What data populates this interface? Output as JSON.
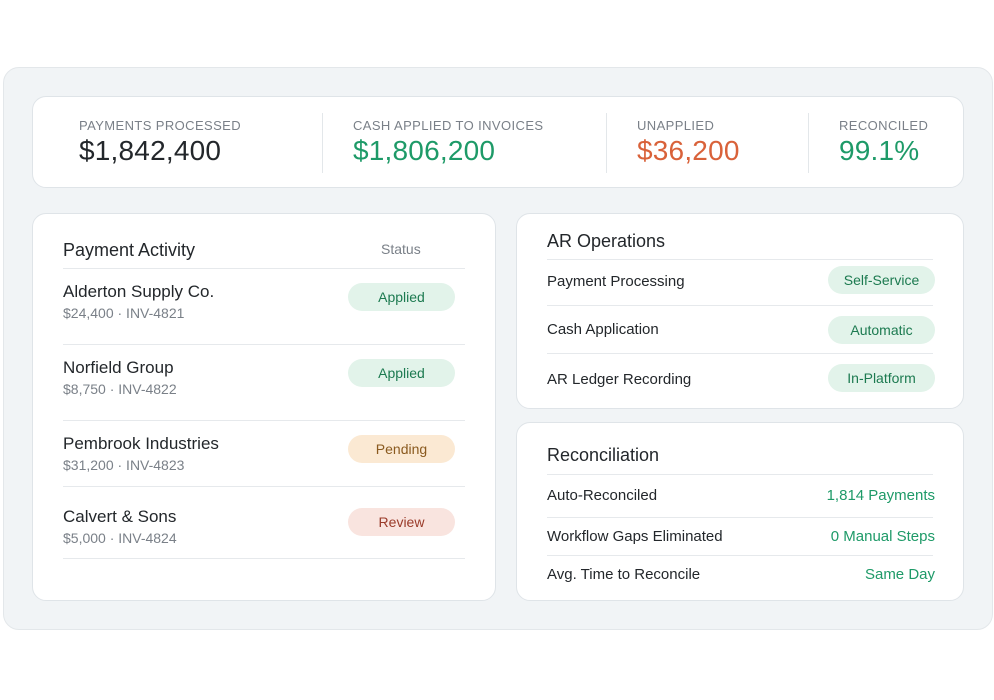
{
  "kpis": [
    {
      "label": "PAYMENTS PROCESSED",
      "value": "$1,842,400",
      "color": "#23272b"
    },
    {
      "label": "CASH APPLIED TO INVOICES",
      "value": "$1,806,200",
      "color": "#1e9a68"
    },
    {
      "label": "UNAPPLIED",
      "value": "$36,200",
      "color": "#d9623a"
    },
    {
      "label": "RECONCILED",
      "value": "99.1%",
      "color": "#1e9a68"
    }
  ],
  "payment_activity": {
    "title": "Payment Activity",
    "status_header": "Status",
    "rows": [
      {
        "name": "Alderton Supply Co.",
        "meta": "$24,400 · INV-4821",
        "status": "Applied"
      },
      {
        "name": "Norfield Group",
        "meta": "$8,750 · INV-4822",
        "status": "Applied"
      },
      {
        "name": "Pembrook Industries",
        "meta": "$31,200 · INV-4823",
        "status": "Pending"
      },
      {
        "name": "Calvert & Sons",
        "meta": "$5,000 · INV-4824",
        "status": "Review"
      }
    ]
  },
  "ar_operations": {
    "title": "AR Operations",
    "rows": [
      {
        "label": "Payment Processing",
        "value": "Self-Service"
      },
      {
        "label": "Cash Application",
        "value": "Automatic"
      },
      {
        "label": "AR Ledger Recording",
        "value": "In-Platform"
      }
    ]
  },
  "reconciliation": {
    "title": "Reconciliation",
    "rows": [
      {
        "label": "Auto-Reconciled",
        "value": "1,814 Payments"
      },
      {
        "label": "Workflow Gaps Eliminated",
        "value": "0 Manual Steps"
      },
      {
        "label": "Avg. Time to Reconcile",
        "value": "Same Day"
      }
    ]
  },
  "colors": {
    "positive": "#1e9a68",
    "warning": "#d9623a",
    "applied_badge": "#e2f3ea",
    "pending_badge": "#fbe9d3",
    "review_badge": "#f9e4df"
  }
}
